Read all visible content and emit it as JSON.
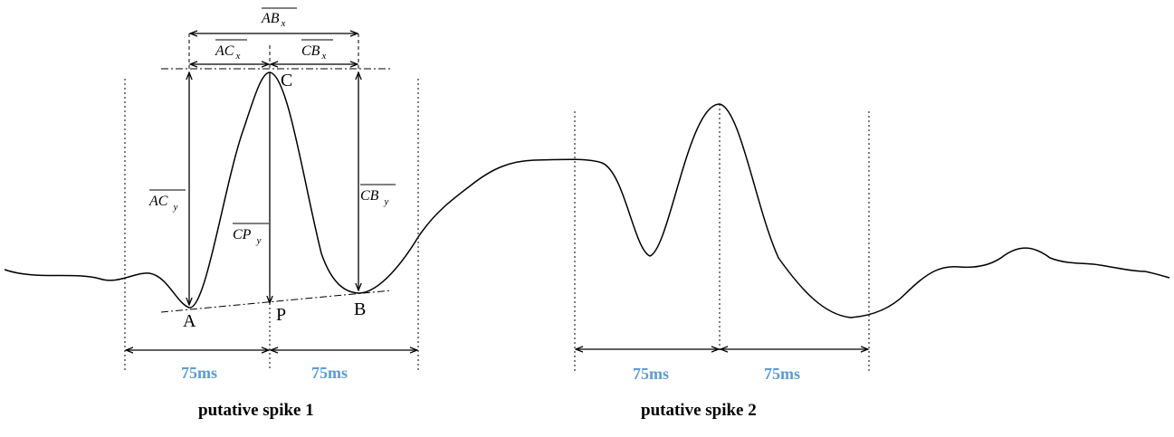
{
  "points": {
    "a": "A",
    "b": "B",
    "c": "C",
    "p": "P"
  },
  "measures": {
    "ab_x": {
      "main": "AB",
      "sub": "x"
    },
    "ac_x": {
      "main": "AC",
      "sub": "x"
    },
    "cb_x": {
      "main": "CB",
      "sub": "x"
    },
    "ac_y": {
      "main": "AC",
      "sub": "y"
    },
    "cp_y": {
      "main": "CP",
      "sub": "y"
    },
    "cb_y": {
      "main": "CB",
      "sub": "y"
    }
  },
  "durations": {
    "s1_left": "75ms",
    "s1_right": "75ms",
    "s2_left": "75ms",
    "s2_right": "75ms"
  },
  "captions": {
    "spike1": "putative spike 1",
    "spike2": "putative spike 2"
  },
  "colors": {
    "duration_text": "#5B9BD5",
    "signal": "#000000"
  }
}
